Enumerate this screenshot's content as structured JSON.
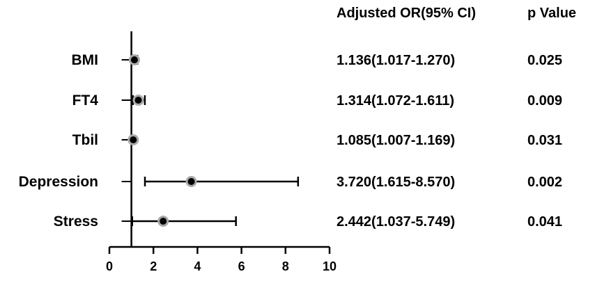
{
  "chart_data": {
    "type": "forest",
    "columns": {
      "or_header": "Adjusted OR(95% CI)",
      "p_header": "p Value"
    },
    "rows": [
      {
        "label": "BMI",
        "or": 1.136,
        "ci": [
          1.017,
          1.27
        ],
        "or_text": "1.136(1.017-1.270)",
        "p_text": "0.025"
      },
      {
        "label": "FT4",
        "or": 1.314,
        "ci": [
          1.072,
          1.611
        ],
        "or_text": "1.314(1.072-1.611)",
        "p_text": "0.009"
      },
      {
        "label": "Tbil",
        "or": 1.085,
        "ci": [
          1.007,
          1.169
        ],
        "or_text": "1.085(1.007-1.169)",
        "p_text": "0.031"
      },
      {
        "label": "Depression",
        "or": 3.72,
        "ci": [
          1.615,
          8.57
        ],
        "or_text": "3.720(1.615-8.570)",
        "p_text": "0.002"
      },
      {
        "label": "Stress",
        "or": 2.442,
        "ci": [
          1.037,
          5.749
        ],
        "or_text": "2.442(1.037-5.749)",
        "p_text": "0.041"
      }
    ],
    "reference_line": 1,
    "xlim": [
      0,
      10
    ],
    "xticks": [
      0,
      2,
      4,
      6,
      8,
      10
    ],
    "xlabel": "",
    "grid": false,
    "legend": "none",
    "colors": {
      "point_fill": "#000000",
      "point_ring": "#a9a9a9",
      "line": "#000000"
    }
  }
}
